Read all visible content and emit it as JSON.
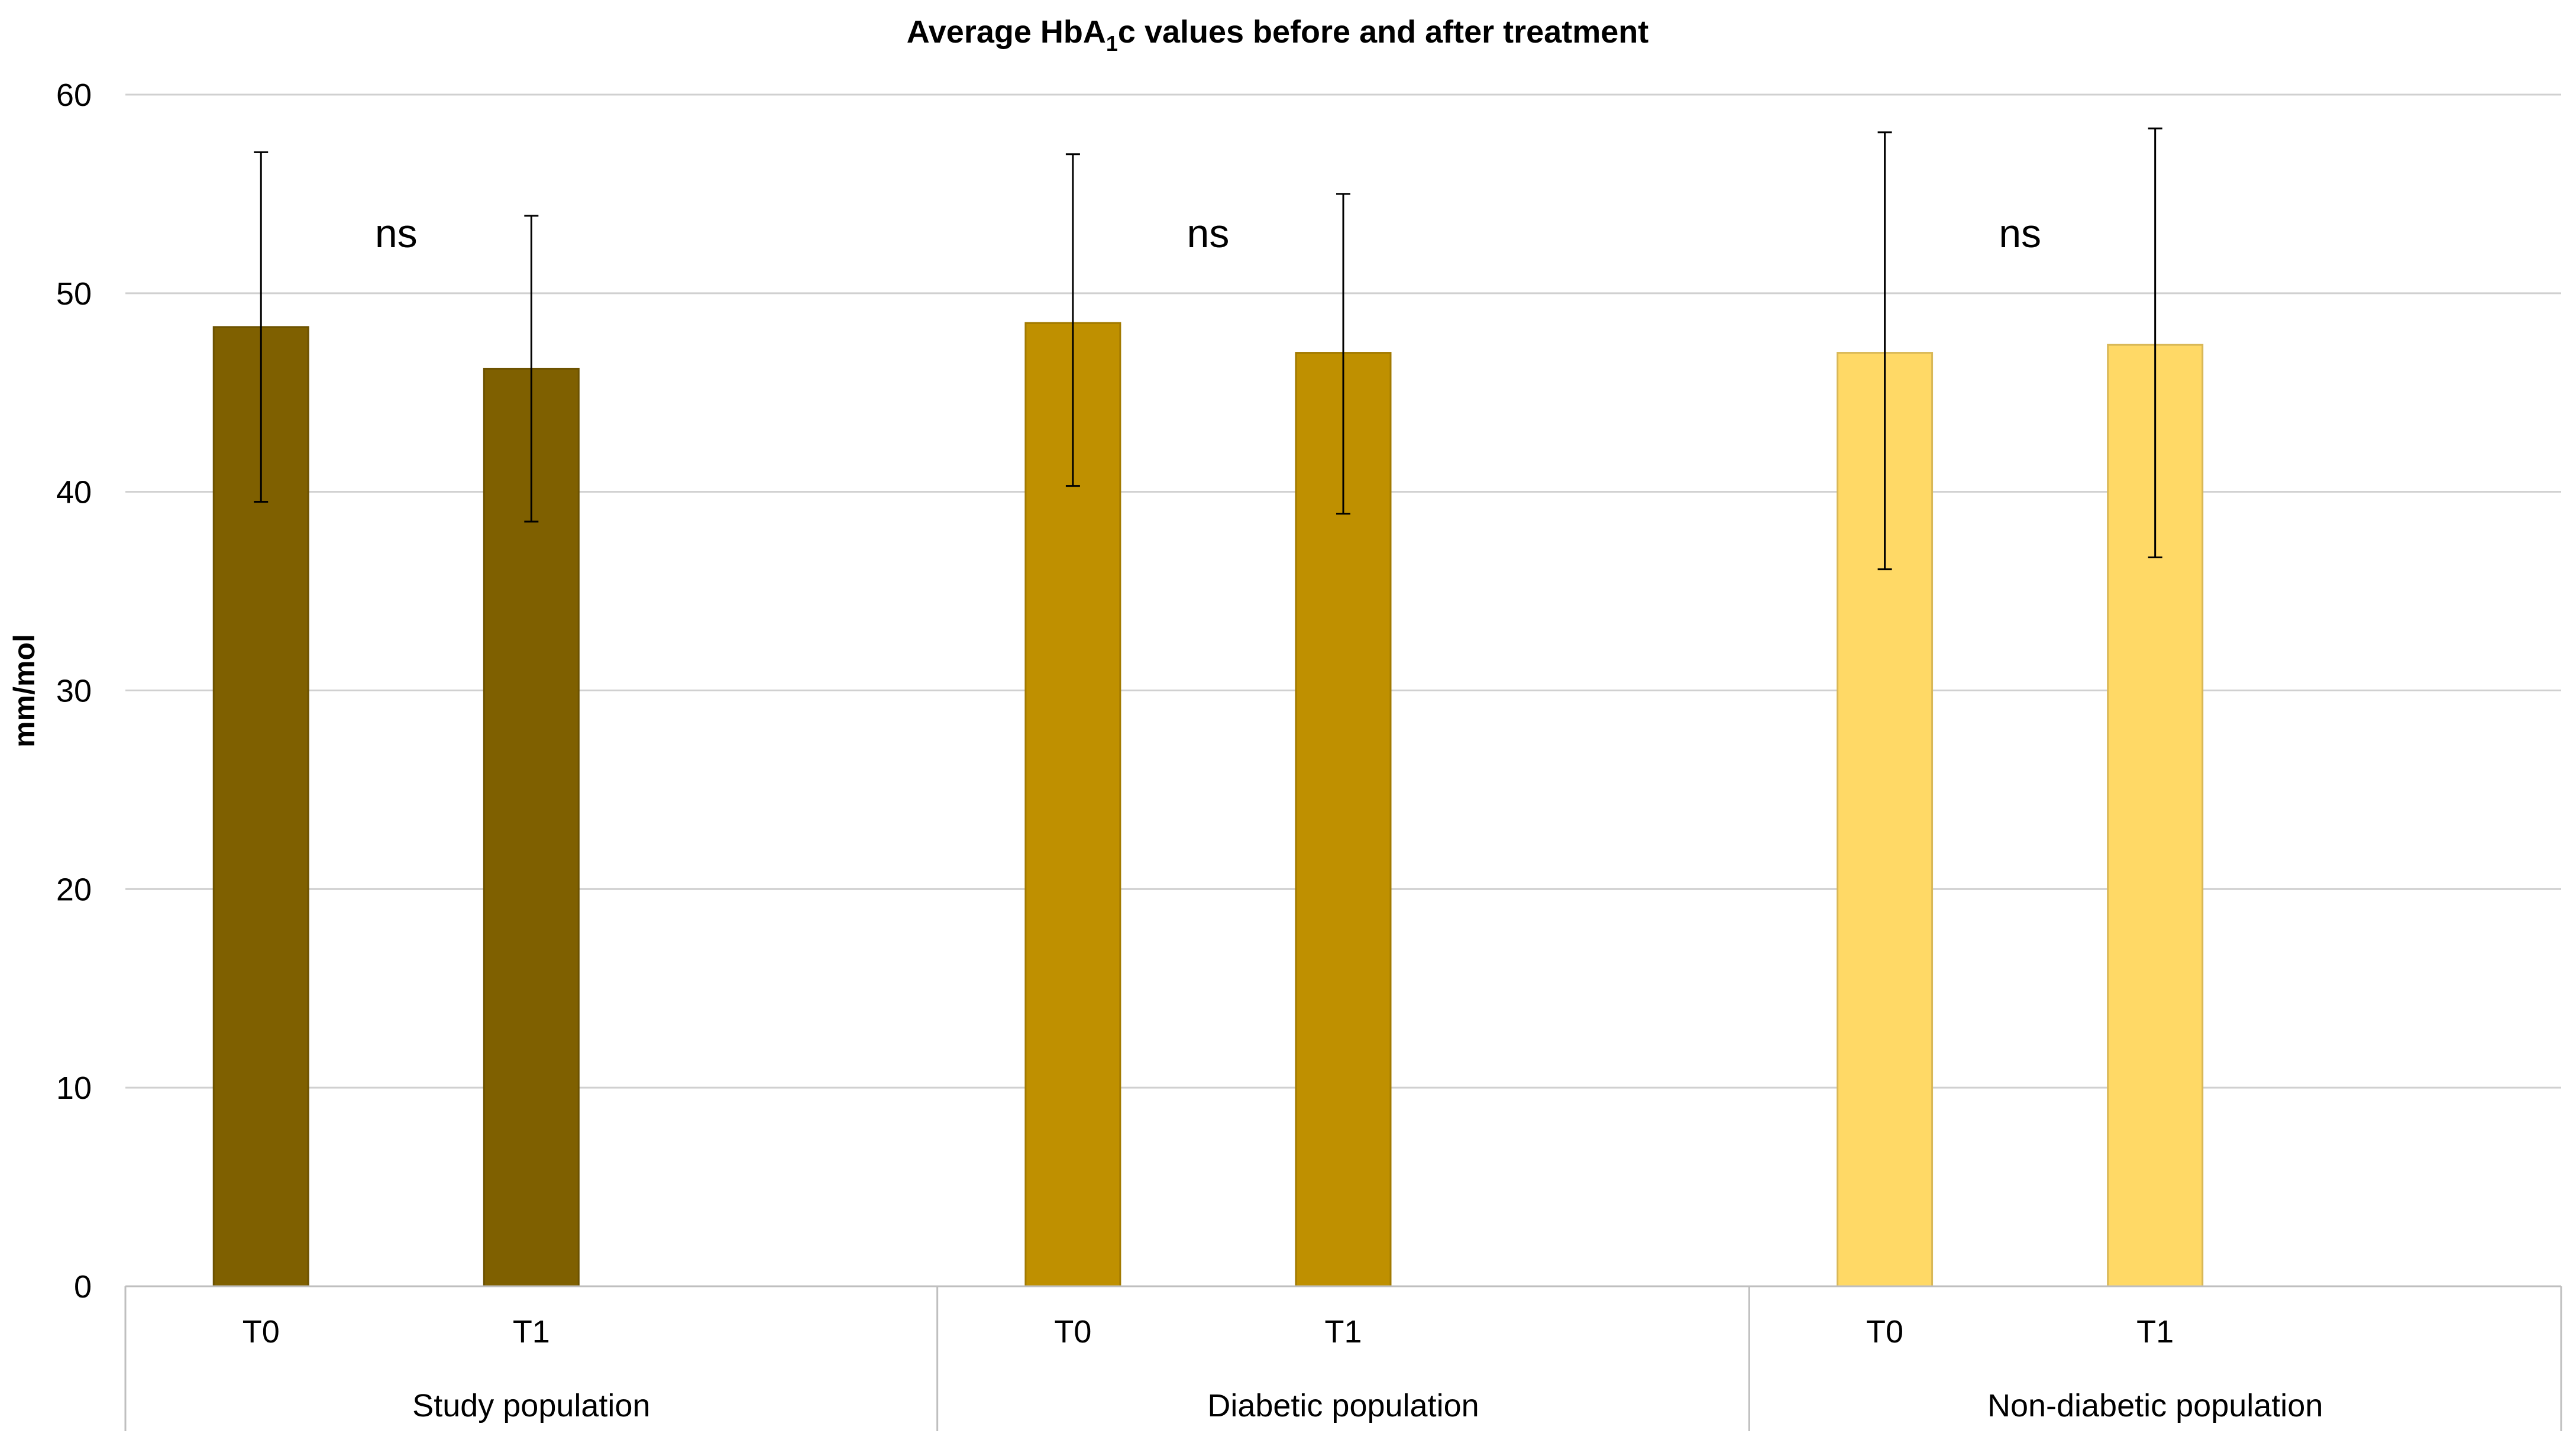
{
  "chart_data": {
    "type": "bar",
    "title": {
      "prefix": "Average HbA",
      "subscript": "1",
      "suffix": "c values before and after treatment"
    },
    "ylabel": "mm/mol",
    "ylim": [
      0,
      60
    ],
    "yticks": [
      "0",
      "10",
      "20",
      "30",
      "40",
      "50",
      "60"
    ],
    "grid": true,
    "groups": [
      {
        "name": "Study population",
        "color": "#7f6000",
        "significance": "ns",
        "bars": [
          {
            "label": "T0",
            "value": 48.3,
            "err_low": 39.5,
            "err_high": 57.1
          },
          {
            "label": "T1",
            "value": 46.2,
            "err_low": 38.5,
            "err_high": 53.9
          }
        ]
      },
      {
        "name": "Diabetic population",
        "color": "#bf9000",
        "significance": "ns",
        "bars": [
          {
            "label": "T0",
            "value": 48.5,
            "err_low": 40.3,
            "err_high": 57.0
          },
          {
            "label": "T1",
            "value": 47.0,
            "err_low": 38.9,
            "err_high": 55.0
          }
        ]
      },
      {
        "name": "Non-diabetic population",
        "color": "#ffd966",
        "significance": "ns",
        "bars": [
          {
            "label": "T0",
            "value": 47.0,
            "err_low": 36.1,
            "err_high": 58.1
          },
          {
            "label": "T1",
            "value": 47.4,
            "err_low": 36.7,
            "err_high": 58.3
          }
        ]
      }
    ]
  }
}
